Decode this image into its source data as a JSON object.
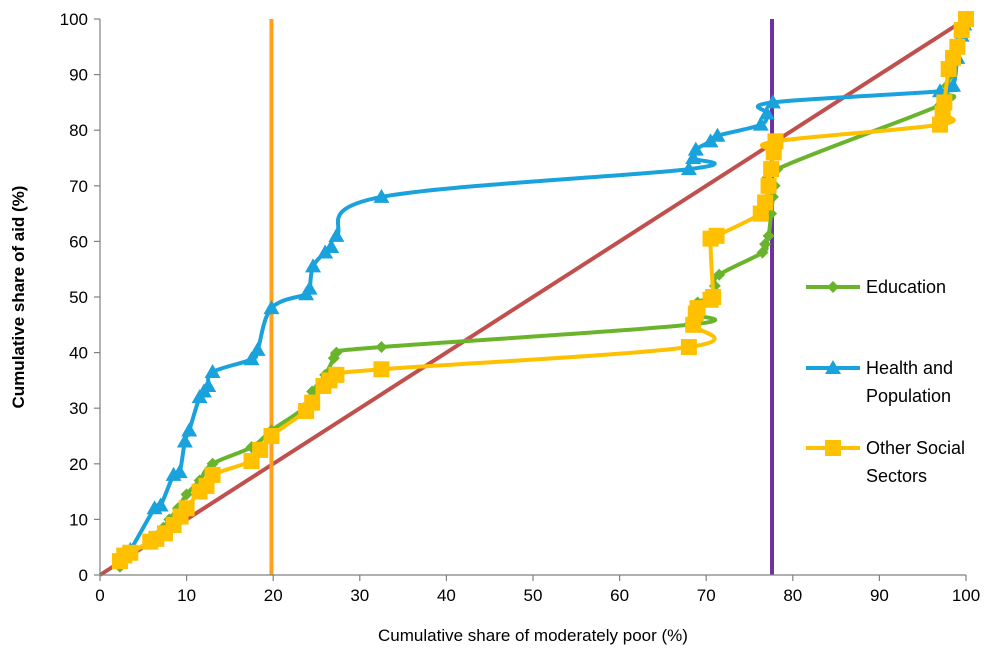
{
  "colors": {
    "education": "#6ab42d",
    "health": "#19a2dc",
    "other": "#ffc000",
    "equality": "#c0504d",
    "vline_orange": "#ffa01e",
    "vline_purple": "#7030a0",
    "axis": "#808080"
  },
  "chart_data": {
    "type": "line",
    "title": "",
    "xlabel": "Cumulative share of  moderately poor (%)",
    "ylabel": "Cumulative share of aid (%)",
    "xlim": [
      0,
      100
    ],
    "ylim": [
      0,
      100
    ],
    "xticks": [
      0,
      10,
      20,
      30,
      40,
      50,
      60,
      70,
      80,
      90,
      100
    ],
    "yticks": [
      0,
      10,
      20,
      30,
      40,
      50,
      60,
      70,
      80,
      90,
      100
    ],
    "grid": false,
    "legend_position": "right",
    "reference_lines": [
      {
        "type": "diagonal",
        "from": [
          0,
          0
        ],
        "to": [
          100,
          100
        ],
        "color_key": "equality"
      },
      {
        "type": "vertical",
        "x": 19.8,
        "color_key": "vline_orange"
      },
      {
        "type": "vertical",
        "x": 77.6,
        "color_key": "vline_purple"
      }
    ],
    "series": [
      {
        "name": "Education",
        "marker": "diamond",
        "color_key": "education",
        "legend_lines": [
          "Education"
        ],
        "points": [
          [
            2.3,
            1.5
          ],
          [
            2.8,
            2.8
          ],
          [
            3.5,
            3.8
          ],
          [
            5.8,
            6.0
          ],
          [
            6.5,
            7.0
          ],
          [
            7.3,
            8.5
          ],
          [
            8.0,
            10.0
          ],
          [
            9.0,
            12.0
          ],
          [
            10.0,
            14.5
          ],
          [
            11.5,
            17.0
          ],
          [
            13.0,
            20.0
          ],
          [
            17.5,
            23.0
          ],
          [
            19.8,
            26.0
          ],
          [
            23.5,
            30.0
          ],
          [
            24.5,
            33.0
          ],
          [
            26.0,
            36.0
          ],
          [
            27.0,
            39.0
          ],
          [
            27.3,
            40.0
          ],
          [
            32.5,
            41.0
          ],
          [
            68.0,
            45.0
          ],
          [
            68.7,
            47.0
          ],
          [
            69.0,
            49.0
          ],
          [
            70.5,
            50.0
          ],
          [
            71.0,
            52.0
          ],
          [
            71.5,
            54.0
          ],
          [
            76.5,
            58.0
          ],
          [
            76.8,
            59.5
          ],
          [
            77.2,
            61.0
          ],
          [
            77.5,
            65.0
          ],
          [
            77.7,
            68.0
          ],
          [
            77.9,
            70.0
          ],
          [
            78.2,
            73.0
          ],
          [
            97.0,
            84.5
          ],
          [
            97.5,
            86.5
          ],
          [
            97.8,
            88.0
          ],
          [
            98.2,
            90.0
          ],
          [
            98.7,
            93.0
          ],
          [
            99.0,
            95.0
          ],
          [
            99.3,
            97.0
          ],
          [
            99.5,
            98.5
          ],
          [
            99.8,
            99.5
          ],
          [
            100.0,
            100.0
          ]
        ]
      },
      {
        "name": "Health and Population",
        "marker": "triangle",
        "color_key": "health",
        "legend_lines": [
          "Health and",
          "Population"
        ],
        "points": [
          [
            2.3,
            2.5
          ],
          [
            3.5,
            4.5
          ],
          [
            6.3,
            12.0
          ],
          [
            7.0,
            12.5
          ],
          [
            8.5,
            18.0
          ],
          [
            9.2,
            18.5
          ],
          [
            9.8,
            24.0
          ],
          [
            10.3,
            26.0
          ],
          [
            11.5,
            32.0
          ],
          [
            12.0,
            33.0
          ],
          [
            12.5,
            34.0
          ],
          [
            13.0,
            36.5
          ],
          [
            17.5,
            38.8
          ],
          [
            18.2,
            40.5
          ],
          [
            19.8,
            48.0
          ],
          [
            23.8,
            50.5
          ],
          [
            24.2,
            51.5
          ],
          [
            24.6,
            55.5
          ],
          [
            26.0,
            58.0
          ],
          [
            26.7,
            59.0
          ],
          [
            27.3,
            61.0
          ],
          [
            32.5,
            68.0
          ],
          [
            68.0,
            73.0
          ],
          [
            68.5,
            75.0
          ],
          [
            68.8,
            76.5
          ],
          [
            70.5,
            78.0
          ],
          [
            71.3,
            79.0
          ],
          [
            76.3,
            81.0
          ],
          [
            77.0,
            83.0
          ],
          [
            77.7,
            85.0
          ],
          [
            97.0,
            87.0
          ],
          [
            98.5,
            88.0
          ],
          [
            99.0,
            93.0
          ],
          [
            99.5,
            97.0
          ],
          [
            99.8,
            99.0
          ],
          [
            100.0,
            100.0
          ]
        ]
      },
      {
        "name": "Other Social Sectors",
        "marker": "square",
        "color_key": "other",
        "legend_lines": [
          "Other Social",
          "Sectors"
        ],
        "points": [
          [
            2.3,
            2.5
          ],
          [
            2.8,
            3.5
          ],
          [
            3.5,
            4.0
          ],
          [
            5.8,
            6.0
          ],
          [
            6.5,
            6.5
          ],
          [
            7.5,
            7.5
          ],
          [
            8.5,
            9.0
          ],
          [
            9.3,
            10.5
          ],
          [
            10.0,
            12.0
          ],
          [
            11.5,
            15.0
          ],
          [
            12.3,
            16.0
          ],
          [
            13.0,
            18.0
          ],
          [
            17.5,
            20.5
          ],
          [
            18.5,
            22.5
          ],
          [
            19.8,
            25.0
          ],
          [
            23.8,
            29.5
          ],
          [
            24.5,
            31.0
          ],
          [
            25.8,
            34.0
          ],
          [
            26.5,
            35.0
          ],
          [
            27.3,
            36.0
          ],
          [
            32.5,
            37.0
          ],
          [
            68.0,
            41.0
          ],
          [
            68.5,
            45.0
          ],
          [
            68.8,
            47.0
          ],
          [
            69.0,
            48.0
          ],
          [
            70.5,
            49.5
          ],
          [
            70.8,
            50.0
          ],
          [
            70.5,
            60.5
          ],
          [
            71.2,
            61.0
          ],
          [
            76.3,
            65.0
          ],
          [
            76.8,
            67.0
          ],
          [
            77.2,
            70.0
          ],
          [
            77.5,
            73.0
          ],
          [
            77.8,
            76.0
          ],
          [
            78.0,
            78.0
          ],
          [
            97.0,
            81.0
          ],
          [
            97.3,
            83.0
          ],
          [
            97.5,
            85.0
          ],
          [
            98.0,
            91.0
          ],
          [
            98.5,
            93.0
          ],
          [
            99.0,
            95.0
          ],
          [
            99.5,
            98.0
          ],
          [
            100.0,
            100.0
          ]
        ]
      }
    ]
  }
}
